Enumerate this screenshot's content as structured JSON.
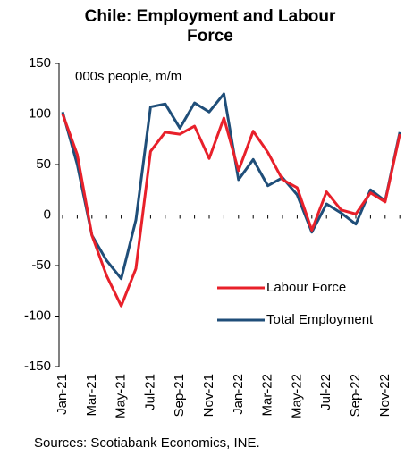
{
  "chart_data": {
    "type": "line",
    "title": "Chile: Employment and Labour Force",
    "subtitle": "000s people, m/m",
    "source": "Sources: Scotiabank Economics, INE.",
    "categories": [
      "Jan-21",
      null,
      "Mar-21",
      null,
      "May-21",
      null,
      "Jul-21",
      null,
      "Sep-21",
      null,
      "Nov-21",
      null,
      "Jan-22",
      null,
      "Mar-22",
      null,
      "May-22",
      null,
      "Jul-22",
      null,
      "Sep-22",
      null,
      "Nov-22",
      null
    ],
    "series": [
      {
        "name": "Labour Force",
        "color": "#e8202a",
        "values": [
          100,
          60,
          -20,
          -60,
          -90,
          -53,
          63,
          82,
          80,
          88,
          56,
          96,
          44,
          83,
          62,
          35,
          27,
          -15,
          23,
          5,
          1,
          22,
          13,
          80
        ]
      },
      {
        "name": "Total Employment",
        "color": "#1f4e79",
        "values": [
          102,
          50,
          -20,
          -45,
          -63,
          -5,
          107,
          110,
          86,
          111,
          102,
          120,
          35,
          55,
          29,
          37,
          20,
          -17,
          11,
          2,
          -9,
          25,
          14,
          82
        ]
      }
    ],
    "ylim": [
      -150,
      150
    ],
    "yticks": [
      -150,
      -100,
      -50,
      0,
      50,
      100,
      150
    ]
  }
}
